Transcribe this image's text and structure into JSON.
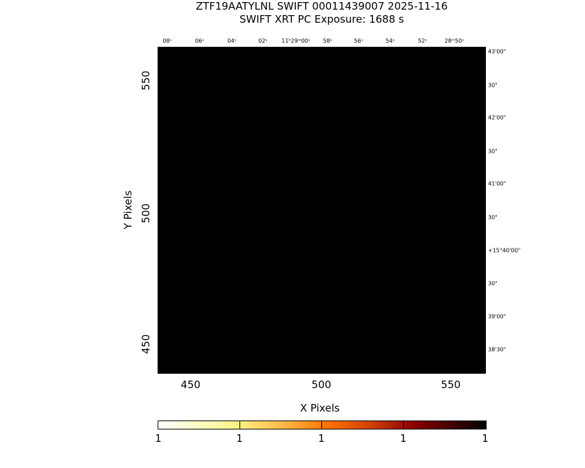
{
  "title_line1": "ZTF19AATYLNL SWIFT 00011439007 2025-11-16",
  "title_line2": "SWIFT XRT PC Exposure:       1688 s",
  "chart_data": {
    "type": "heatmap",
    "title": "ZTF19AATYLNL SWIFT 00011439007 2025-11-16",
    "subtitle": "SWIFT XRT PC Exposure:       1688 s",
    "xlabel": "X Pixels",
    "ylabel": "Y Pixels",
    "x_ticks": [
      "450",
      "500",
      "550"
    ],
    "y_ticks": [
      "550",
      "500",
      "450"
    ],
    "ra_ticks": [
      "08ˢ",
      "06ˢ",
      "04ˢ",
      "02ˢ",
      "11ʰ29ᵐ00ˢ",
      "58ˢ",
      "56ˢ",
      "54ˢ",
      "52ˢ",
      "28ᵐ50ˢ"
    ],
    "dec_ticks": [
      "43'00\"",
      "30\"",
      "42'00\"",
      "30\"",
      "41'00\"",
      "30\"",
      "+15°40'00\"",
      "30\"",
      "39'00\"",
      "38'30\""
    ],
    "colorbar_ticks": [
      "1",
      "1",
      "1",
      "1",
      "1"
    ],
    "colormap": [
      "#ffffff",
      "#ffff80",
      "#ff8000",
      "#800000",
      "#000000"
    ],
    "image_fill": "#000000"
  }
}
